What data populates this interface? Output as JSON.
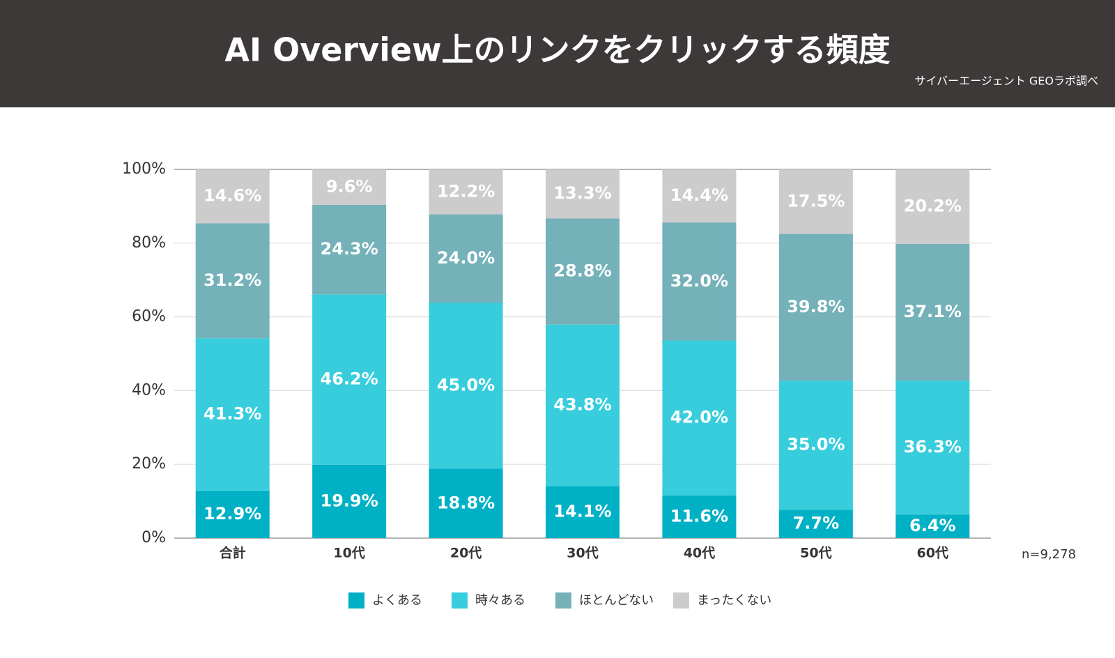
{
  "chart_data": {
    "type": "bar",
    "stacked": true,
    "title": "AI Overview上のリンクをクリックする頻度",
    "subtitle": "サイバーエージェント GEOラボ調べ",
    "note": "n=9,278",
    "categories": [
      "合計",
      "10代",
      "20代",
      "30代",
      "40代",
      "50代",
      "60代"
    ],
    "series": [
      {
        "name": "よくある",
        "color": "#00b1c6",
        "values": [
          12.9,
          19.9,
          18.8,
          14.1,
          11.6,
          7.7,
          6.4
        ],
        "value_labels": [
          "12.9%",
          "19.9%",
          "18.8%",
          "14.1%",
          "11.6%",
          "7.7%",
          "6.4%"
        ]
      },
      {
        "name": "時々ある",
        "color": "#38cddc",
        "values": [
          41.3,
          46.2,
          45.0,
          43.8,
          42.0,
          35.0,
          36.3
        ],
        "value_labels": [
          "41.3%",
          "46.2%",
          "45.0%",
          "43.8%",
          "42.0%",
          "35.0%",
          "36.3%"
        ]
      },
      {
        "name": "ほとんどない",
        "color": "#74b1b9",
        "values": [
          31.2,
          24.3,
          24.0,
          28.8,
          32.0,
          39.8,
          37.1
        ],
        "value_labels": [
          "31.2%",
          "24.3%",
          "24.0%",
          "28.8%",
          "32.0%",
          "39.8%",
          "37.1%"
        ]
      },
      {
        "name": "まったくない",
        "color": "#cccccc",
        "values": [
          14.6,
          9.6,
          12.2,
          13.3,
          14.4,
          17.5,
          20.2
        ],
        "value_labels": [
          "14.6%",
          "9.6%",
          "12.2%",
          "13.3%",
          "14.4%",
          "17.5%",
          "20.2%"
        ]
      }
    ],
    "ylim": [
      0,
      100
    ],
    "yticks": [
      {
        "value": 0,
        "label": "0%"
      },
      {
        "value": 20,
        "label": "20%"
      },
      {
        "value": 40,
        "label": "40%"
      },
      {
        "value": 60,
        "label": "60%"
      },
      {
        "value": 80,
        "label": "80%"
      },
      {
        "value": 100,
        "label": "100%"
      }
    ],
    "grid": true,
    "legend": "bottom"
  }
}
